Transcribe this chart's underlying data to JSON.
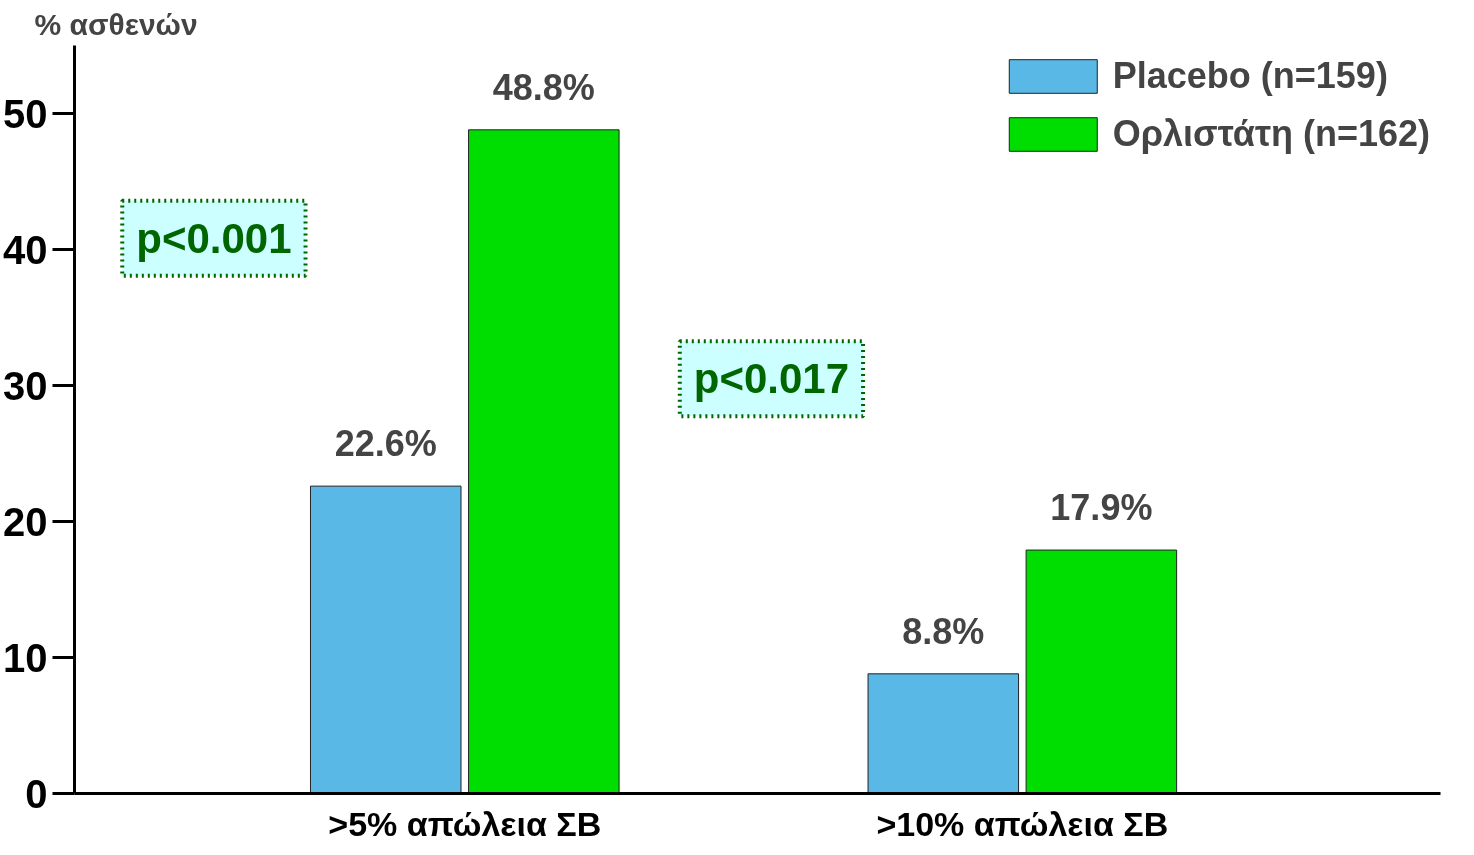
{
  "chart_data": {
    "type": "bar",
    "ylabel": "% ασθενών",
    "categories": [
      ">5% απώλεια ΣΒ",
      ">10% απώλεια ΣΒ"
    ],
    "series": [
      {
        "name": "Placebo (n=159)",
        "color": "#5ab8e6",
        "values": [
          22.6,
          8.8
        ],
        "value_labels": [
          "22.6%",
          "8.8%"
        ]
      },
      {
        "name": "Ορλιστάτη (n=162)",
        "color": "#00dd00",
        "values": [
          48.8,
          17.9
        ],
        "value_labels": [
          "48.8%",
          "17.9%"
        ]
      }
    ],
    "annotations": [
      "p<0.001",
      "p<0.017"
    ],
    "ylim": [
      0,
      55
    ],
    "yticks": [
      0,
      10,
      20,
      30,
      40,
      50
    ],
    "grid": false,
    "legend": "top right"
  }
}
